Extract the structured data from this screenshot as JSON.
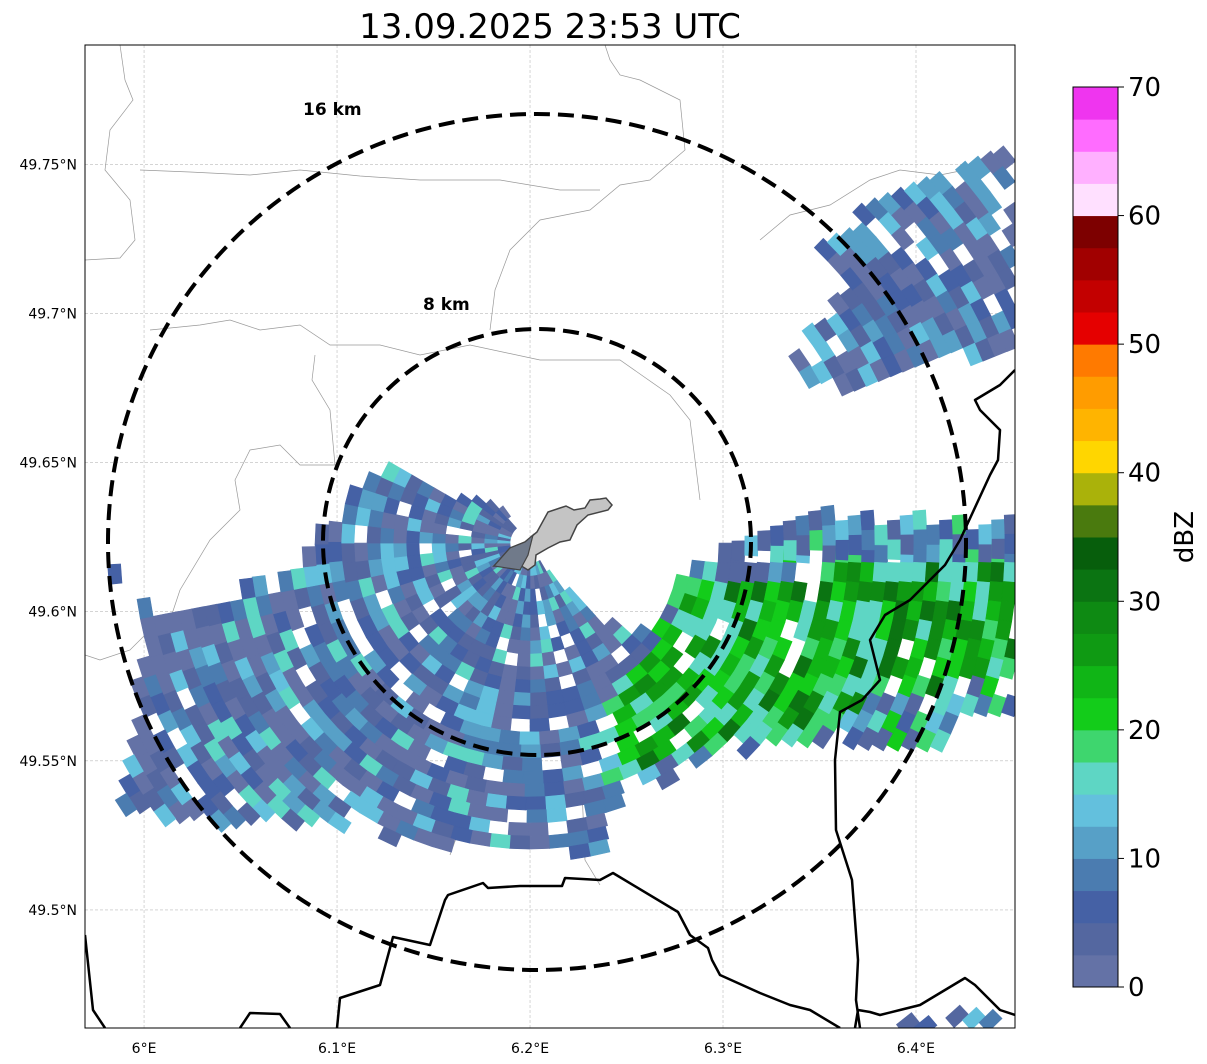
{
  "chart_data": {
    "type": "heatmap",
    "title": "13.09.2025 23:53 UTC",
    "xlim": [
      5.9694,
      6.4513
    ],
    "ylim": [
      49.4604,
      49.79
    ],
    "x_ticks": [
      6.0,
      6.1,
      6.2,
      6.3,
      6.4
    ],
    "x_tick_labels": [
      "6°E",
      "6.1°E",
      "6.2°E",
      "6.3°E",
      "6.4°E"
    ],
    "y_ticks": [
      49.5,
      49.55,
      49.6,
      49.65,
      49.7,
      49.75
    ],
    "y_tick_labels": [
      "49.5°N",
      "49.55°N",
      "49.6°N",
      "49.65°N",
      "49.7°N",
      "49.75°N"
    ],
    "grid": true,
    "center": {
      "lon": 6.2,
      "lat": 49.623
    },
    "range_rings": [
      {
        "label": "8 km",
        "radius_km": 8
      },
      {
        "label": "16 km",
        "radius_km": 16
      }
    ],
    "colorbar": {
      "label": "dBZ",
      "min": 0,
      "max": 70,
      "step": 2.5,
      "tick_values": [
        0,
        10,
        20,
        30,
        40,
        50,
        60,
        70
      ],
      "tick_labels": [
        "0",
        "10",
        "20",
        "30",
        "40",
        "50",
        "60",
        "70"
      ],
      "colors": [
        "#6472a6",
        "#5467a0",
        "#4561a5",
        "#4b7cb0",
        "#57a0c7",
        "#63c0dd",
        "#5ed6c4",
        "#3ed66e",
        "#13cc1a",
        "#10b516",
        "#0f9a13",
        "#0e8a13",
        "#0b7412",
        "#075e0c",
        "#4a7a0e",
        "#aab20a",
        "#ffd600",
        "#ffb400",
        "#ff9c00",
        "#ff7a00",
        "#e50000",
        "#c30000",
        "#a10000",
        "#7d0000",
        "#ffe0ff",
        "#ffb0ff",
        "#ff6cff",
        "#ef35ef"
      ]
    },
    "echo_regions": [
      {
        "name": "southwest-band",
        "dbz_range": [
          0,
          17.5
        ],
        "polygon": [
          [
            5.9694,
            49.6204
          ],
          [
            5.9927,
            49.6086
          ],
          [
            6.0036,
            49.5942
          ],
          [
            6.0813,
            49.6161
          ],
          [
            6.102,
            49.6396
          ],
          [
            6.1228,
            49.648
          ],
          [
            6.185,
            49.6362
          ],
          [
            6.1953,
            49.6228
          ],
          [
            6.2368,
            49.596
          ],
          [
            6.2627,
            49.5926
          ],
          [
            6.2472,
            49.5624
          ],
          [
            6.242,
            49.5188
          ],
          [
            6.185,
            49.5188
          ],
          [
            6.0813,
            49.5289
          ],
          [
            6.0295,
            49.5289
          ],
          [
            5.9849,
            49.5356
          ],
          [
            5.9979,
            49.5758
          ],
          [
            6.0036,
            49.602
          ]
        ]
      },
      {
        "name": "east-band",
        "dbz_range": [
          2.5,
          22.5
        ],
        "polygon": [
          [
            6.2316,
            49.5557
          ],
          [
            6.2782,
            49.6127
          ],
          [
            6.3249,
            49.6295
          ],
          [
            6.3508,
            49.6328
          ],
          [
            6.4513,
            49.6295
          ],
          [
            6.4513,
            49.5658
          ],
          [
            6.4332,
            49.5641
          ],
          [
            6.4124,
            49.5523
          ],
          [
            6.356,
            49.5557
          ],
          [
            6.3094,
            49.554
          ],
          [
            6.2782,
            49.549
          ],
          [
            6.2731,
            49.5423
          ],
          [
            6.2264,
            49.5456
          ]
        ]
      },
      {
        "name": "east-core",
        "dbz_range": [
          15,
          32.5
        ],
        "polygon": [
          [
            6.2368,
            49.5557
          ],
          [
            6.2782,
            49.6027
          ],
          [
            6.3249,
            49.6127
          ],
          [
            6.4513,
            49.6161
          ],
          [
            6.4513,
            49.5792
          ],
          [
            6.3895,
            49.5725
          ],
          [
            6.3146,
            49.5557
          ],
          [
            6.2523,
            49.5456
          ]
        ]
      },
      {
        "name": "northeast-cluster",
        "dbz_range": [
          0,
          15
        ],
        "polygon": [
          [
            6.3352,
            49.6816
          ],
          [
            6.343,
            49.695
          ],
          [
            6.3689,
            49.7084
          ],
          [
            6.3482,
            49.7201
          ],
          [
            6.3741,
            49.7352
          ],
          [
            6.4,
            49.7453
          ],
          [
            6.4414,
            49.7554
          ],
          [
            6.4513,
            49.7571
          ],
          [
            6.4513,
            49.6883
          ],
          [
            6.4228,
            49.6849
          ],
          [
            6.3813,
            49.6748
          ],
          [
            6.3404,
            49.6732
          ]
        ]
      },
      {
        "name": "southeast-corner",
        "dbz_range": [
          2.5,
          15
        ],
        "polygon": [
          [
            6.3896,
            49.4604
          ],
          [
            6.3999,
            49.4638
          ],
          [
            6.4429,
            49.4654
          ],
          [
            6.4429,
            49.4604
          ]
        ]
      }
    ]
  }
}
